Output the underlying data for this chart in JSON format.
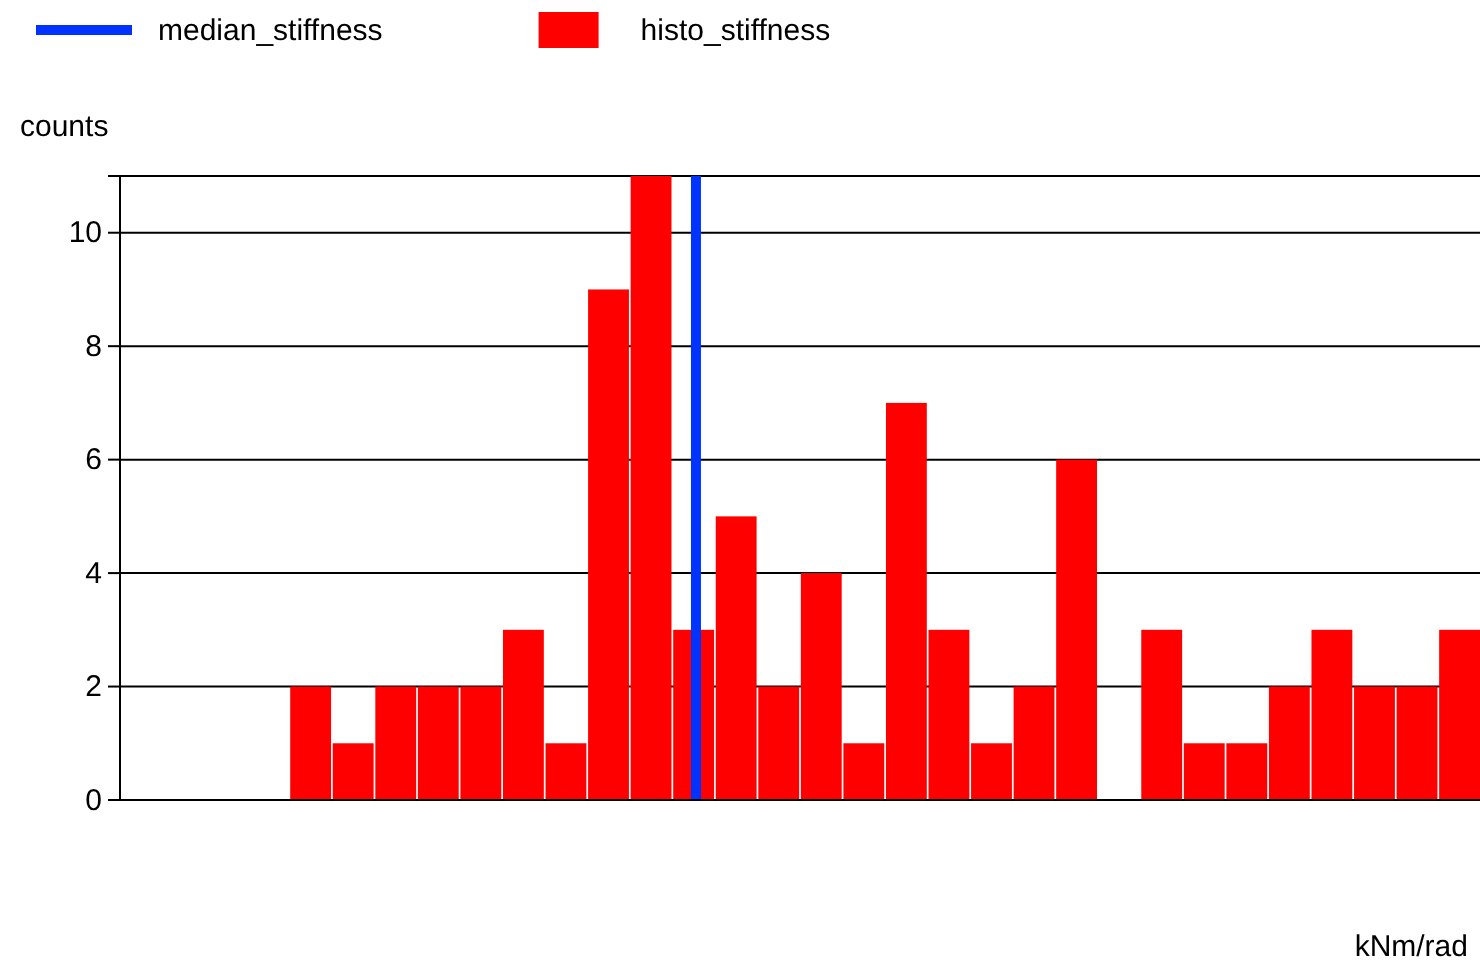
{
  "chart_data": {
    "type": "bar",
    "xlabel": "kNm/rad",
    "ylabel": "counts",
    "categories": [
      null,
      null,
      null,
      null,
      null,
      null,
      null,
      null,
      null,
      null,
      null,
      null,
      null,
      null,
      null,
      null,
      null,
      null,
      null,
      null,
      null,
      null,
      null,
      null,
      null,
      null,
      null,
      null,
      null,
      null,
      null,
      null
    ],
    "series": [
      {
        "name": "histo_stiffness",
        "color": "#ff0000",
        "values": [
          0,
          0,
          0,
          0,
          2,
          1,
          2,
          2,
          2,
          3,
          1,
          9,
          11,
          3,
          5,
          2,
          4,
          1,
          7,
          3,
          1,
          2,
          6,
          0,
          3,
          1,
          1,
          2,
          3,
          2,
          2,
          3
        ]
      }
    ],
    "ylim": [
      0,
      11
    ],
    "yticks": [
      0,
      2,
      4,
      6,
      8,
      10
    ],
    "ref_lines": [
      {
        "axis": "x",
        "label": "median_stiffness",
        "color": "#0033ff"
      }
    ],
    "tick_labels": "y",
    "grid": "y",
    "legend": "top left"
  }
}
